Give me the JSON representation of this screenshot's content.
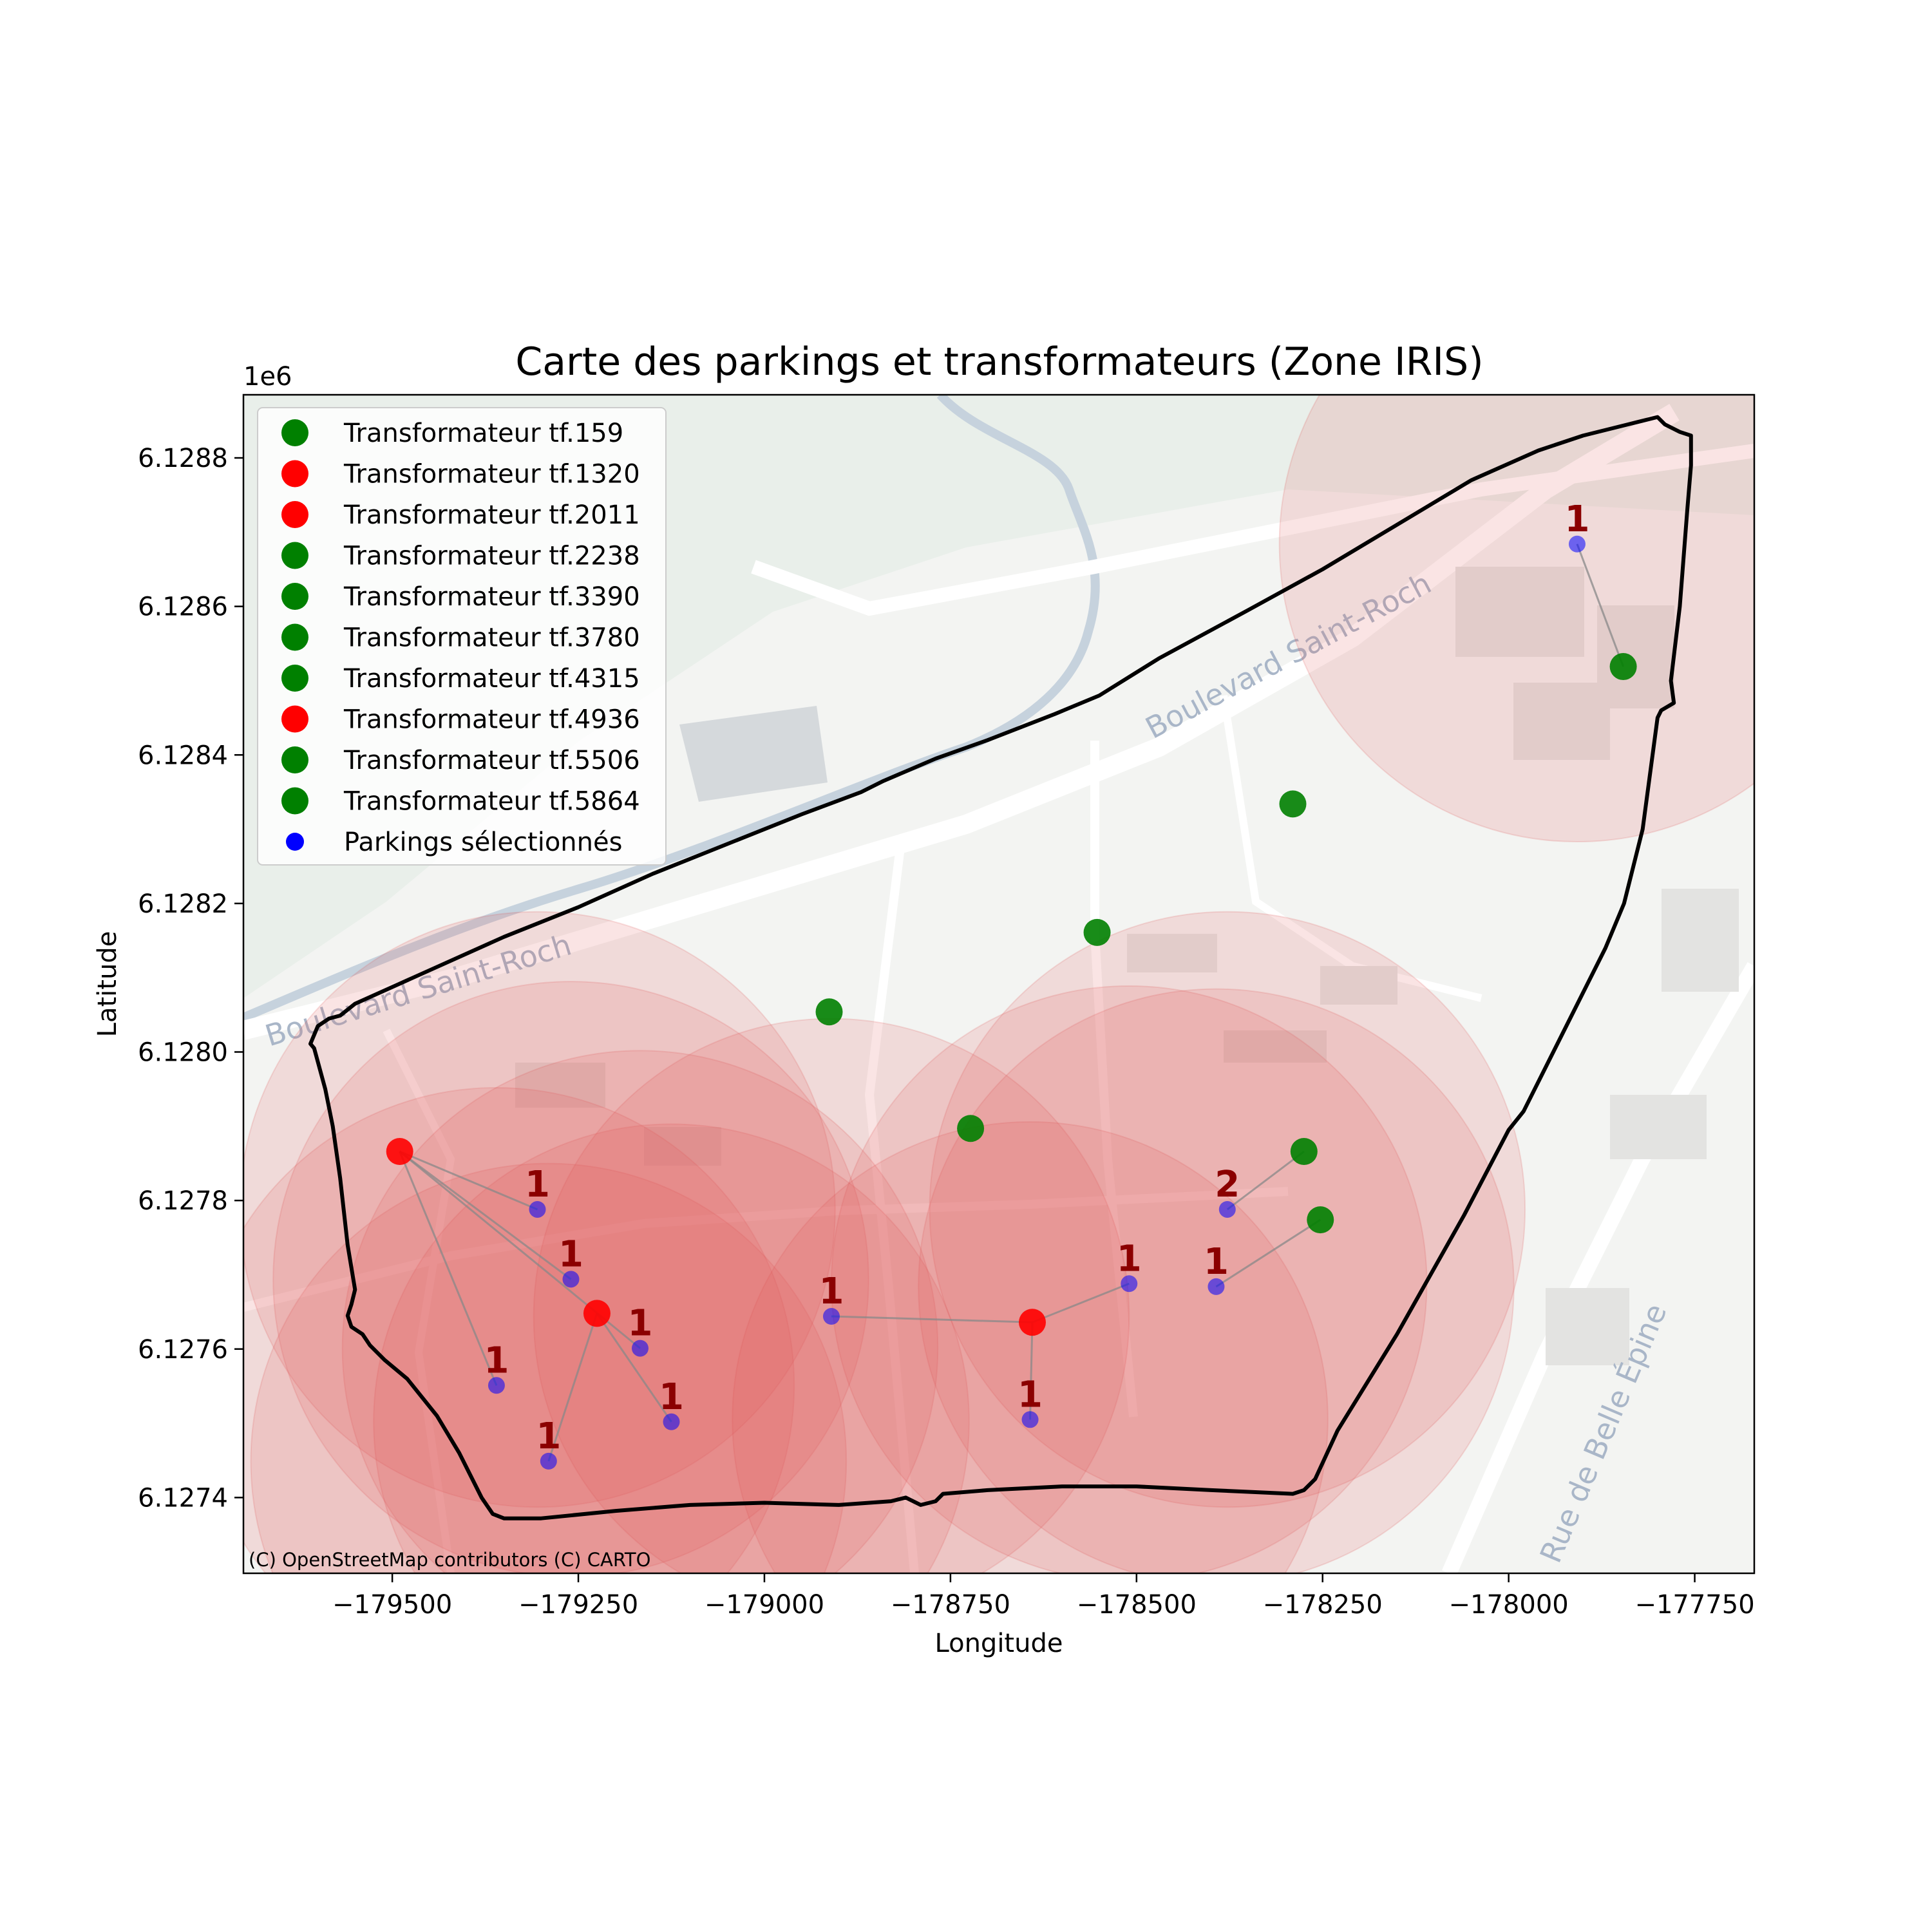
{
  "chart_data": {
    "type": "scatter",
    "title": "Carte des parkings et transformateurs (Zone IRIS)",
    "xlabel": "Longitude",
    "ylabel": "Latitude",
    "y_offset_label": "1e6",
    "xlim": [
      -179700,
      -177670
    ],
    "ylim": [
      6127298,
      6128885
    ],
    "x_ticks": [
      -179500,
      -179250,
      -179000,
      -178750,
      -178500,
      -178250,
      -178000,
      -177750
    ],
    "x_tick_labels": [
      "−179500",
      "−179250",
      "−179000",
      "−178750",
      "−178500",
      "−178250",
      "−178000",
      "−177750"
    ],
    "y_ticks": [
      6127400,
      6127600,
      6127800,
      6128000,
      6128200,
      6128400,
      6128600,
      6128800
    ],
    "y_tick_labels": [
      "6.1274",
      "6.1276",
      "6.1278",
      "6.1280",
      "6.1282",
      "6.1284",
      "6.1286",
      "6.1288"
    ],
    "grid": false,
    "legend_position": "upper-left",
    "attribution": "(C) OpenStreetMap contributors (C) CARTO",
    "street_labels": [
      "Boulevard Saint-Roch",
      "Boulevard Saint-Roch",
      "Rue de Belle Épine"
    ],
    "colors": {
      "used": "#ff0000",
      "unused": "#008000",
      "parking": "#0000ff",
      "count": "#8b0000",
      "circle": "#e05555",
      "boundary": "#000000"
    },
    "transformers": [
      {
        "name": "Transformateur tf.159",
        "x": -178913,
        "y": 6128054,
        "used": false
      },
      {
        "name": "Transformateur tf.1320",
        "x": -179490,
        "y": 6127866,
        "used": true
      },
      {
        "name": "Transformateur tf.2011",
        "x": -179225,
        "y": 6127648,
        "used": true
      },
      {
        "name": "Transformateur tf.2238",
        "x": -178275,
        "y": 6127866,
        "used": false
      },
      {
        "name": "Transformateur tf.3390",
        "x": -178553,
        "y": 6128161,
        "used": false
      },
      {
        "name": "Transformateur tf.3780",
        "x": -178290,
        "y": 6128334,
        "used": false
      },
      {
        "name": "Transformateur tf.4315",
        "x": -178253,
        "y": 6127774,
        "used": false
      },
      {
        "name": "Transformateur tf.4936",
        "x": -178640,
        "y": 6127636,
        "used": true
      },
      {
        "name": "Transformateur tf.5506",
        "x": -178723,
        "y": 6127897,
        "used": false
      },
      {
        "name": "Transformateur tf.5864",
        "x": -177846,
        "y": 6128519,
        "used": false
      }
    ],
    "parking_legend": "Parkings sélectionnés",
    "parkings": [
      {
        "x": -179305,
        "y": 6127788,
        "count": "1",
        "link": -179490,
        "link_y": 6127866
      },
      {
        "x": -179260,
        "y": 6127694,
        "count": "1",
        "link": -179490,
        "link_y": 6127866
      },
      {
        "x": -179167,
        "y": 6127601,
        "count": "1",
        "link": -179490,
        "link_y": 6127866
      },
      {
        "x": -179360,
        "y": 6127551,
        "count": "1",
        "link": -179490,
        "link_y": 6127866
      },
      {
        "x": -179290,
        "y": 6127449,
        "count": "1",
        "link": -179225,
        "link_y": 6127648
      },
      {
        "x": -179125,
        "y": 6127502,
        "count": "1",
        "link": -179225,
        "link_y": 6127648
      },
      {
        "x": -178910,
        "y": 6127644,
        "count": "1",
        "link": -178640,
        "link_y": 6127636
      },
      {
        "x": -178510,
        "y": 6127688,
        "count": "1",
        "link": -178640,
        "link_y": 6127636
      },
      {
        "x": -178643,
        "y": 6127505,
        "count": "1",
        "link": -178640,
        "link_y": 6127636
      },
      {
        "x": -178393,
        "y": 6127684,
        "count": "1",
        "link": -178253,
        "link_y": 6127774
      },
      {
        "x": -178378,
        "y": 6127788,
        "count": "2",
        "link": -178275,
        "link_y": 6127866
      },
      {
        "x": -177908,
        "y": 6128684,
        "count": "1",
        "link": -177846,
        "link_y": 6128519
      }
    ],
    "radius_circles": [
      {
        "x": -179360,
        "y": 6127551
      },
      {
        "x": -179305,
        "y": 6127788
      },
      {
        "x": -179260,
        "y": 6127694
      },
      {
        "x": -179167,
        "y": 6127601
      },
      {
        "x": -179290,
        "y": 6127449
      },
      {
        "x": -179125,
        "y": 6127502
      },
      {
        "x": -178910,
        "y": 6127644
      },
      {
        "x": -178643,
        "y": 6127505
      },
      {
        "x": -178510,
        "y": 6127688
      },
      {
        "x": -178393,
        "y": 6127684
      },
      {
        "x": -178378,
        "y": 6127788
      },
      {
        "x": -177908,
        "y": 6128684
      }
    ],
    "circle_radius": 400,
    "boundary": [
      [
        -179610,
        6128011
      ],
      [
        -179600,
        6128035
      ],
      [
        -179585,
        6128045
      ],
      [
        -179570,
        6128049
      ],
      [
        -179550,
        6128065
      ],
      [
        -179450,
        6128110
      ],
      [
        -179350,
        6128155
      ],
      [
        -179250,
        6128195
      ],
      [
        -179150,
        6128240
      ],
      [
        -179050,
        6128280
      ],
      [
        -178950,
        6128320
      ],
      [
        -178870,
        6128350
      ],
      [
        -178840,
        6128365
      ],
      [
        -178770,
        6128395
      ],
      [
        -178700,
        6128420
      ],
      [
        -178610,
        6128455
      ],
      [
        -178550,
        6128480
      ],
      [
        -178470,
        6128530
      ],
      [
        -178350,
        6128595
      ],
      [
        -178250,
        6128650
      ],
      [
        -178150,
        6128710
      ],
      [
        -178050,
        6128770
      ],
      [
        -177960,
        6128810
      ],
      [
        -177900,
        6128830
      ],
      [
        -177840,
        6128845
      ],
      [
        -177800,
        6128855
      ],
      [
        -177790,
        6128845
      ],
      [
        -177770,
        6128835
      ],
      [
        -177755,
        6128830
      ],
      [
        -177755,
        6128790
      ],
      [
        -177760,
        6128730
      ],
      [
        -177770,
        6128600
      ],
      [
        -177782,
        6128500
      ],
      [
        -177778,
        6128470
      ],
      [
        -177795,
        6128460
      ],
      [
        -177800,
        6128450
      ],
      [
        -177820,
        6128300
      ],
      [
        -177845,
        6128200
      ],
      [
        -177870,
        6128140
      ],
      [
        -177920,
        6128040
      ],
      [
        -177980,
        6127920
      ],
      [
        -178000,
        6127895
      ],
      [
        -178060,
        6127780
      ],
      [
        -178150,
        6127620
      ],
      [
        -178230,
        6127490
      ],
      [
        -178260,
        6127425
      ],
      [
        -178275,
        6127410
      ],
      [
        -178290,
        6127405
      ],
      [
        -178400,
        6127410
      ],
      [
        -178500,
        6127415
      ],
      [
        -178600,
        6127415
      ],
      [
        -178700,
        6127410
      ],
      [
        -178760,
        6127405
      ],
      [
        -178770,
        6127395
      ],
      [
        -178790,
        6127390
      ],
      [
        -178810,
        6127400
      ],
      [
        -178830,
        6127395
      ],
      [
        -178900,
        6127390
      ],
      [
        -179000,
        6127393
      ],
      [
        -179100,
        6127390
      ],
      [
        -179200,
        6127382
      ],
      [
        -179300,
        6127372
      ],
      [
        -179350,
        6127372
      ],
      [
        -179365,
        6127378
      ],
      [
        -179380,
        6127400
      ],
      [
        -179410,
        6127460
      ],
      [
        -179440,
        6127510
      ],
      [
        -179480,
        6127560
      ],
      [
        -179510,
        6127585
      ],
      [
        -179530,
        6127605
      ],
      [
        -179540,
        6127620
      ],
      [
        -179555,
        6127630
      ],
      [
        -179560,
        6127645
      ],
      [
        -179555,
        6127660
      ],
      [
        -179550,
        6127680
      ],
      [
        -179560,
        6127740
      ],
      [
        -179570,
        6127830
      ],
      [
        -179580,
        6127900
      ],
      [
        -179590,
        6127950
      ],
      [
        -179605,
        6128005
      ],
      [
        -179610,
        6128011
      ]
    ]
  }
}
